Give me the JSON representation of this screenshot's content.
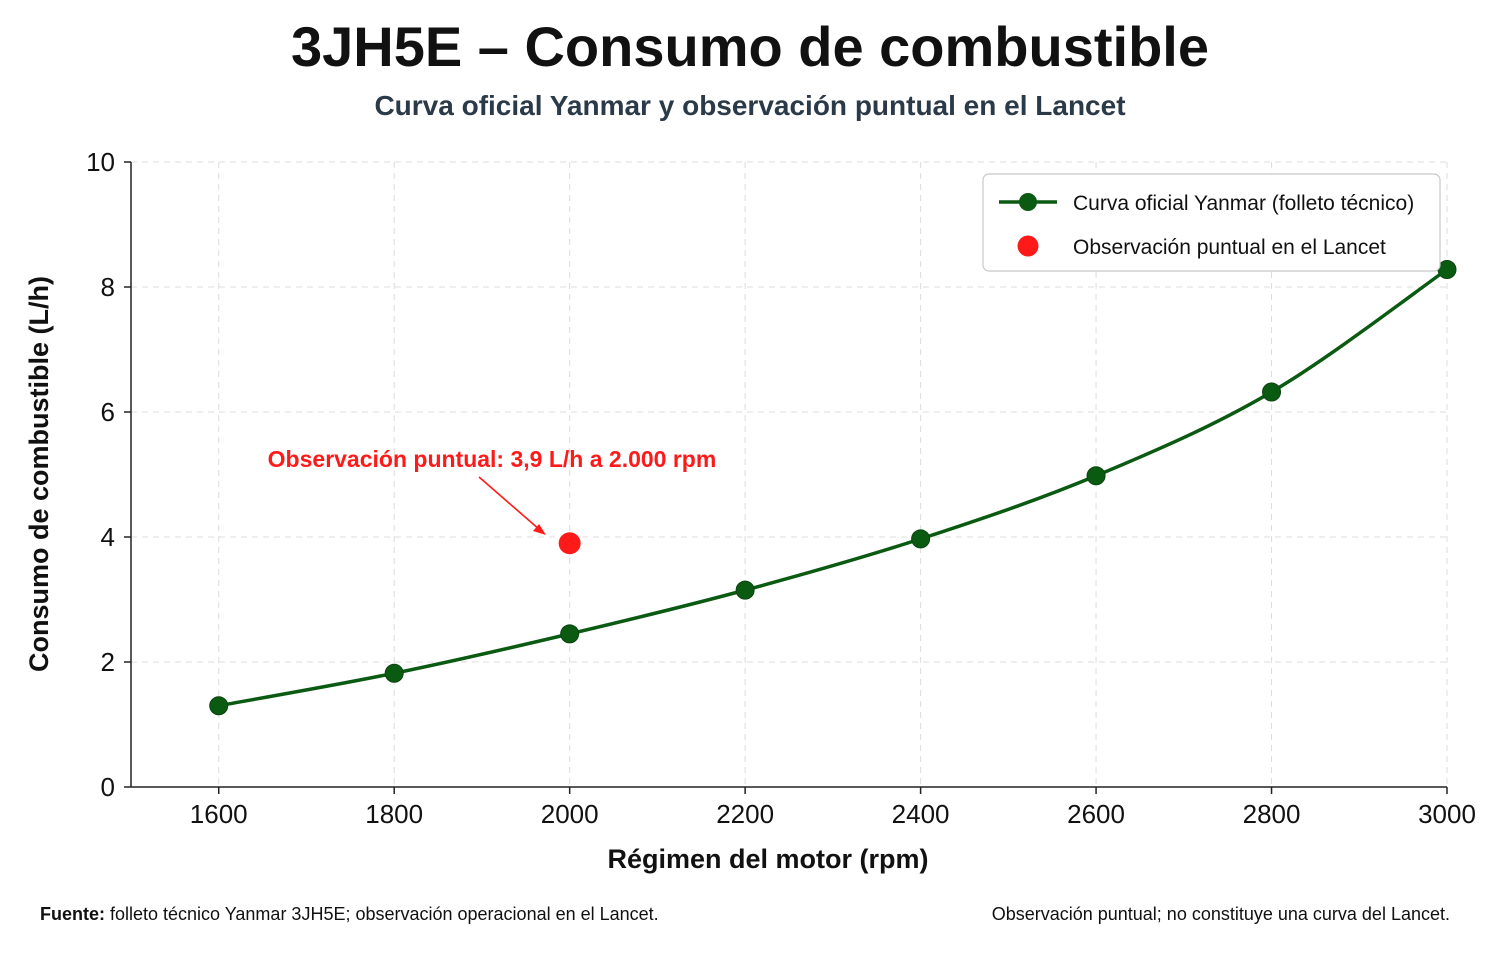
{
  "header": {
    "title": "3JH5E – Consumo de combustible",
    "subtitle": "Curva oficial Yanmar y observación puntual en el Lancet"
  },
  "footer": {
    "source_label": "Fuente:",
    "source_text": " folleto técnico Yanmar 3JH5E; observación operacional en el Lancet.",
    "note": "Observación puntual; no constituye una curva del Lancet."
  },
  "chart_data": {
    "type": "line",
    "xlabel": "Régimen del motor (rpm)",
    "ylabel": "Consumo de combustible (L/h)",
    "xlim": [
      1500,
      3000
    ],
    "ylim": [
      0,
      10
    ],
    "xticks": [
      1600,
      1800,
      2000,
      2200,
      2400,
      2600,
      2800,
      3000
    ],
    "yticks": [
      0,
      2,
      4,
      6,
      8,
      10
    ],
    "grid": true,
    "legend_position": "top-right",
    "series": [
      {
        "name": "Curva oficial Yanmar (folleto técnico)",
        "color": "#0b5a12",
        "x": [
          1600,
          1800,
          2000,
          2200,
          2400,
          2600,
          2800,
          3000
        ],
        "y": [
          1.3,
          1.82,
          2.45,
          3.15,
          3.97,
          4.98,
          6.32,
          8.28
        ]
      },
      {
        "name": "Observación puntual en el Lancet",
        "color": "#ff1a1a",
        "x": [
          2000
        ],
        "y": [
          3.9
        ]
      }
    ],
    "annotation": {
      "text": "Observación puntual: 3,9 L/h a 2.000 rpm",
      "x": 2000,
      "y": 3.9,
      "color": "#ff1a1a"
    }
  }
}
